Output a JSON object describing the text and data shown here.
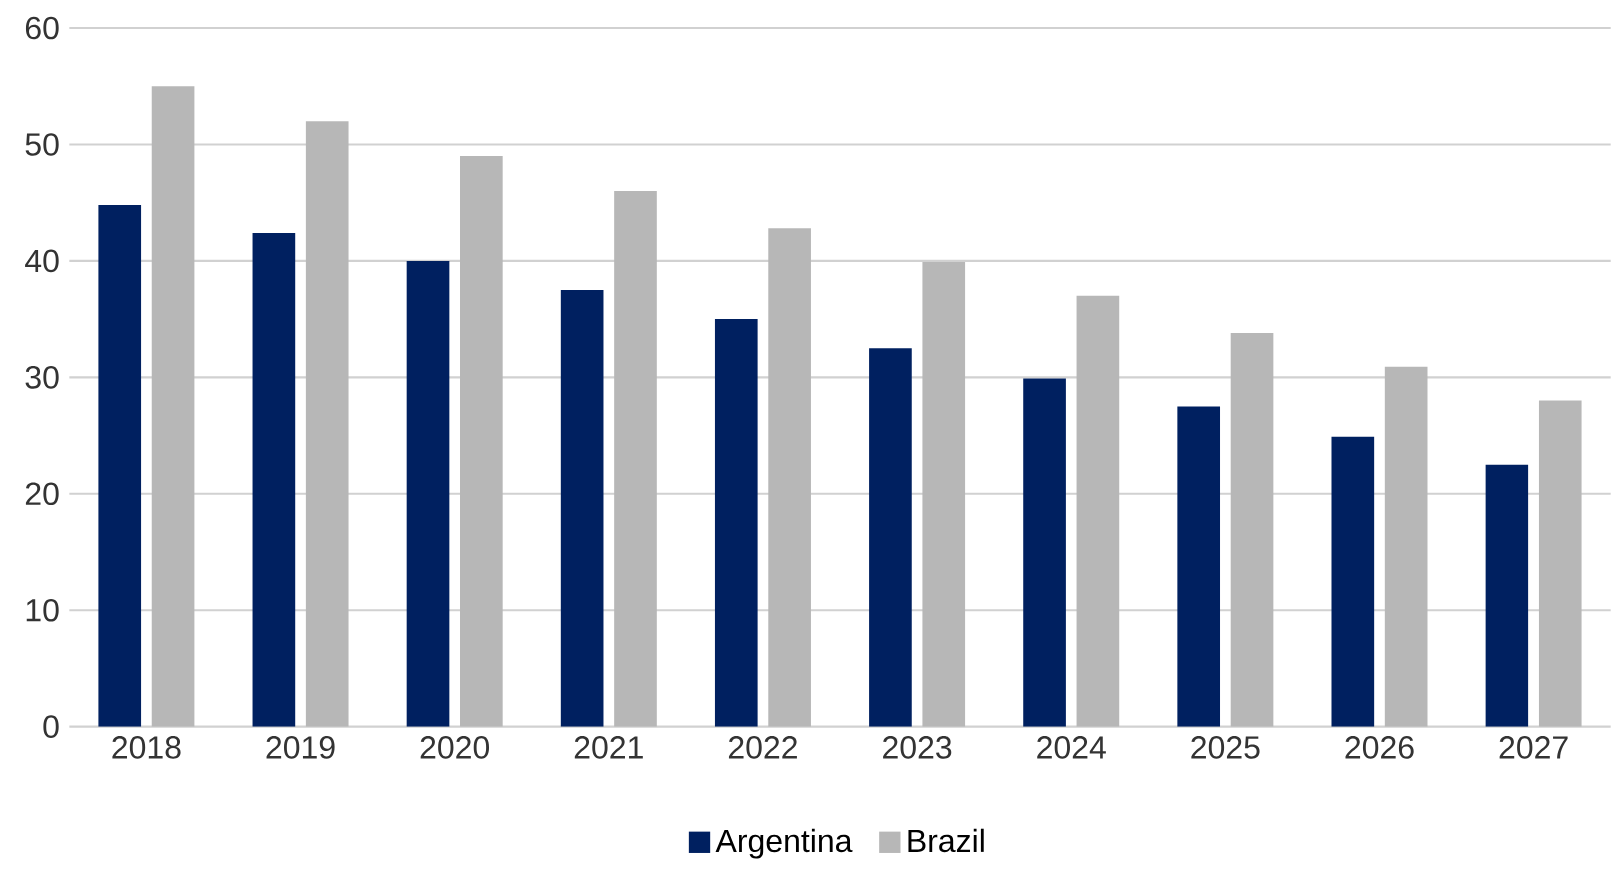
{
  "chart_data": {
    "type": "bar",
    "categories": [
      "2018",
      "2019",
      "2020",
      "2021",
      "2022",
      "2023",
      "2024",
      "2025",
      "2026",
      "2027"
    ],
    "series": [
      {
        "name": "Argentina",
        "color": "#002060",
        "values": [
          44.8,
          42.4,
          40.0,
          37.5,
          35.0,
          32.5,
          29.9,
          27.5,
          24.9,
          22.5
        ]
      },
      {
        "name": "Brazil",
        "color": "#b7b7b7",
        "values": [
          55.0,
          52.0,
          49.0,
          46.0,
          42.8,
          39.9,
          37.0,
          33.8,
          30.9,
          28.0
        ]
      }
    ],
    "ylim": [
      0,
      60
    ],
    "yticks": [
      0,
      10,
      20,
      30,
      40,
      50,
      60
    ],
    "grid": "y",
    "legend": "bottom"
  }
}
